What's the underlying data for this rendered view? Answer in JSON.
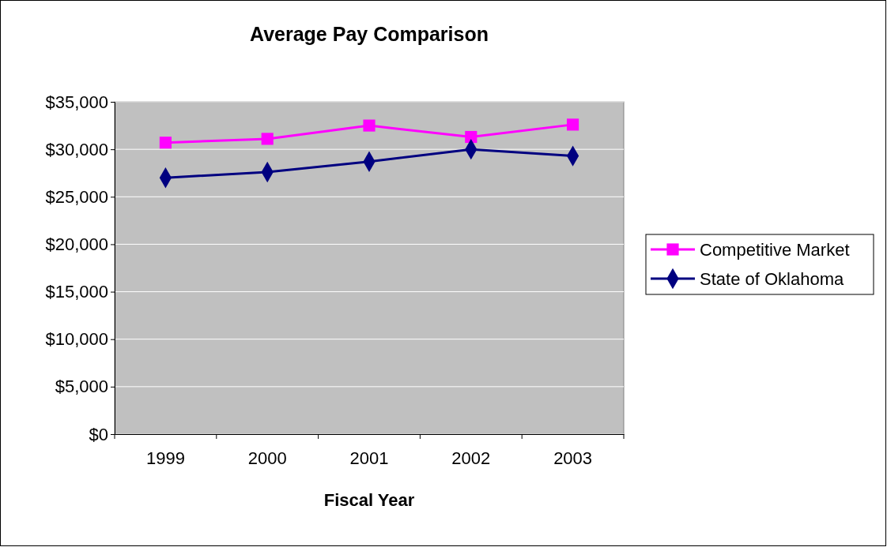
{
  "chart_data": {
    "type": "line",
    "title": "Average Pay Comparison",
    "xlabel": "Fiscal Year",
    "categories": [
      "1999",
      "2000",
      "2001",
      "2002",
      "2003"
    ],
    "series": [
      {
        "name": "Competitive Market",
        "color": "#ff00ff",
        "marker": "square",
        "values": [
          30700,
          31100,
          32500,
          31300,
          32600
        ]
      },
      {
        "name": "State of Oklahoma",
        "color": "#000080",
        "marker": "diamond",
        "values": [
          27000,
          27600,
          28700,
          30000,
          29300
        ]
      }
    ],
    "ylim": [
      0,
      35000
    ],
    "yticks": [
      {
        "value": 0,
        "label": "$0"
      },
      {
        "value": 5000,
        "label": "$5,000"
      },
      {
        "value": 10000,
        "label": "$10,000"
      },
      {
        "value": 15000,
        "label": "$15,000"
      },
      {
        "value": 20000,
        "label": "$20,000"
      },
      {
        "value": 25000,
        "label": "$25,000"
      },
      {
        "value": 30000,
        "label": "$30,000"
      },
      {
        "value": 35000,
        "label": "$35,000"
      }
    ],
    "grid": "y",
    "legend": "right"
  }
}
